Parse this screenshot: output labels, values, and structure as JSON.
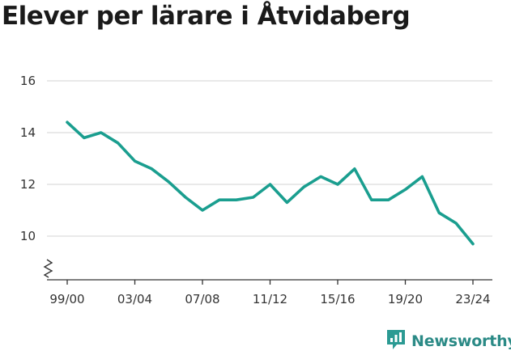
{
  "brand": {
    "name": "Newsworthy",
    "color": "#2b9a93",
    "icon": "newsworthy-logo-icon"
  },
  "chart_data": {
    "type": "line",
    "title": "Elever per lärare i Åtvidaberg",
    "xlabel": "",
    "ylabel": "",
    "x": [
      "99/00",
      "00/01",
      "01/02",
      "02/03",
      "03/04",
      "04/05",
      "05/06",
      "06/07",
      "07/08",
      "08/09",
      "09/10",
      "10/11",
      "11/12",
      "12/13",
      "13/14",
      "14/15",
      "15/16",
      "16/17",
      "17/18",
      "18/19",
      "19/20",
      "20/21",
      "21/22",
      "22/23",
      "23/24"
    ],
    "x_tick_labels": [
      "99/00",
      "03/04",
      "07/08",
      "11/12",
      "15/16",
      "19/20",
      "23/24"
    ],
    "y_ticks": [
      10,
      12,
      14,
      16
    ],
    "ylim": [
      8.2,
      16.3
    ],
    "y_axis_break": true,
    "grid": "horizontal",
    "legend": "none",
    "series": [
      {
        "color": "#1a9e8f",
        "values": [
          14.4,
          13.8,
          14.0,
          13.6,
          12.9,
          12.6,
          12.1,
          11.5,
          11.0,
          11.4,
          11.4,
          11.5,
          12.0,
          11.3,
          11.9,
          12.3,
          12.0,
          12.6,
          11.4,
          11.4,
          11.8,
          12.3,
          10.9,
          10.5,
          9.7
        ]
      }
    ]
  }
}
